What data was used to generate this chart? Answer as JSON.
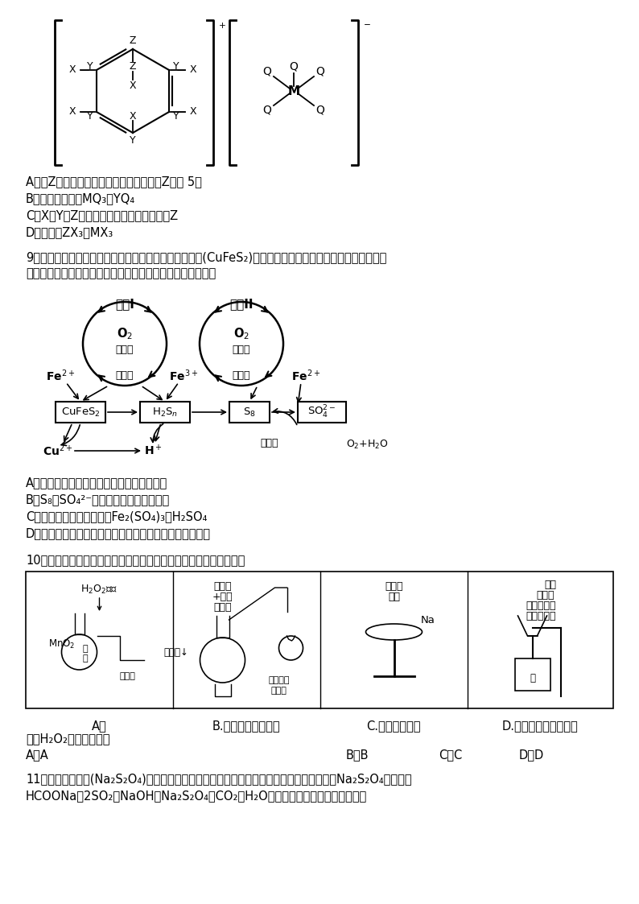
{
  "bg_color": "#ffffff",
  "q8_answers": [
    "A．与Z同周期的元素中，第一电离能小于Z的有 5种",
    "B．分子的极性：MQ₃＜YQ₄",
    "C．X、Y、Z三种元素中，电负性最大的是Z",
    "D．沸点：ZX₃＞MX₃"
  ],
  "q9_text1": "9．生物浸出法炼铜的原理如下：在反应釜中加入黄铜矿(CuFeS₂)、硫酸铁、硫酸和微生物并鼓入空气，黄铜",
  "q9_text2": "矿逐渐溶解，各物质的转化关系如图所示。下列说法错误的是",
  "q9_answers": [
    "A．浸出过程中若温度过高会导致浸出率降低",
    "B．S₈、SO₄²⁻中硫原子的杂化方式不同",
    "C．可以循环使用的物质有Fe₂(SO₄)₃和H₂SO₄",
    "D．生物浸出法炼铜相对于传统火法炼铜污染小，适合推广"
  ],
  "q10_text": "10．利用下列装置和试剂进行实验，设计合理且能达到实验目的的是",
  "q10_captions": [
    "A．",
    "B.实验室制乙酸乙酯",
    "C.观察钠的燃烧",
    "D.利用铝热反应冶炼铁"
  ],
  "q10_subcaption": "探究H₂O₂分解的热效应",
  "q10_answer": "A．A                                    B．B     C．C  D．D",
  "q11_text1": "11．连二亚硫酸钠(Na₂S₂O₄)易溶于水，难溶于甲醇，在空气中极易被氧化。甲酸钠法制备Na₂S₂O₄的原理为",
  "q11_text2": "HCOONa＋2SO₂＋NaOH＝Na₂S₂O₄＋CO₂＋H₂O，装置如图。下列说法正确的是"
}
